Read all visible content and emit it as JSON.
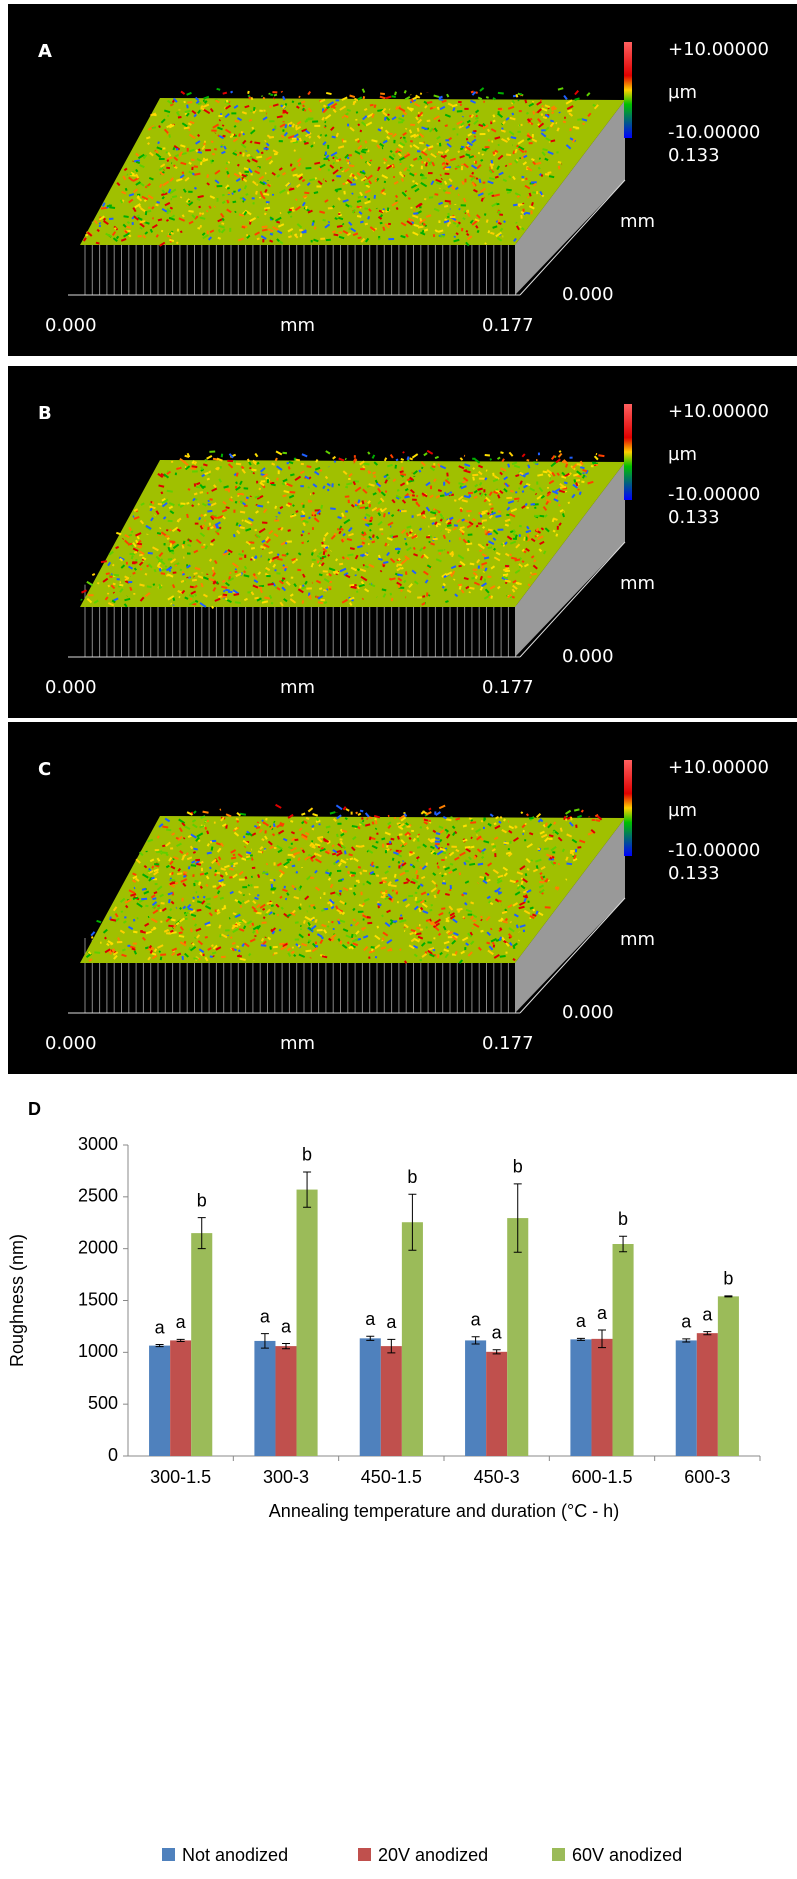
{
  "panels": [
    {
      "letter": "A",
      "scale_max": "+10.00000",
      "scale_unit": "µm",
      "scale_min": "-10.00000",
      "y_max": "0.133",
      "y_unit": "mm",
      "y_min": "0.000",
      "x_min": "0.000",
      "x_unit": "mm",
      "x_max": "0.177"
    },
    {
      "letter": "B",
      "scale_max": "+10.00000",
      "scale_unit": "µm",
      "scale_min": "-10.00000",
      "y_max": "0.133",
      "y_unit": "mm",
      "y_min": "0.000",
      "x_min": "0.000",
      "x_unit": "mm",
      "x_max": "0.177"
    },
    {
      "letter": "C",
      "scale_max": "+10.00000",
      "scale_unit": "µm",
      "scale_min": "-10.00000",
      "y_max": "0.133",
      "y_unit": "mm",
      "y_min": "0.000",
      "x_min": "0.000",
      "x_unit": "mm",
      "x_max": "0.177"
    }
  ],
  "chart_data": {
    "type": "bar",
    "panel_label": "D",
    "x_label": "Annealing temperature and duration (°C - h)",
    "y_label": "Roughness (nm)",
    "categories": [
      "300-1.5",
      "300-3",
      "450-1.5",
      "450-3",
      "600-1.5",
      "600-3"
    ],
    "series": [
      {
        "name": "Not anodized",
        "color": "#4f81bd",
        "values": [
          1065,
          1110,
          1135,
          1115,
          1125,
          1115
        ],
        "errors": [
          10,
          70,
          20,
          35,
          10,
          15
        ],
        "labels": [
          "a",
          "a",
          "a",
          "a",
          "a",
          "a"
        ]
      },
      {
        "name": "20V anodized",
        "color": "#c0504d",
        "values": [
          1115,
          1060,
          1060,
          1005,
          1130,
          1185
        ],
        "errors": [
          10,
          25,
          65,
          20,
          85,
          15
        ],
        "labels": [
          "a",
          "a",
          "a",
          "a",
          "a",
          "a"
        ]
      },
      {
        "name": "60V anodized",
        "color": "#9bbb59",
        "values": [
          2150,
          2570,
          2255,
          2295,
          2045,
          1540
        ],
        "errors": [
          150,
          170,
          270,
          330,
          75,
          5
        ],
        "labels": [
          "b",
          "b",
          "b",
          "b",
          "b",
          "b"
        ]
      }
    ],
    "ylim": [
      0,
      3000
    ],
    "yticks": [
      0,
      500,
      1000,
      1500,
      2000,
      2500,
      3000
    ],
    "legend": "bottom"
  }
}
